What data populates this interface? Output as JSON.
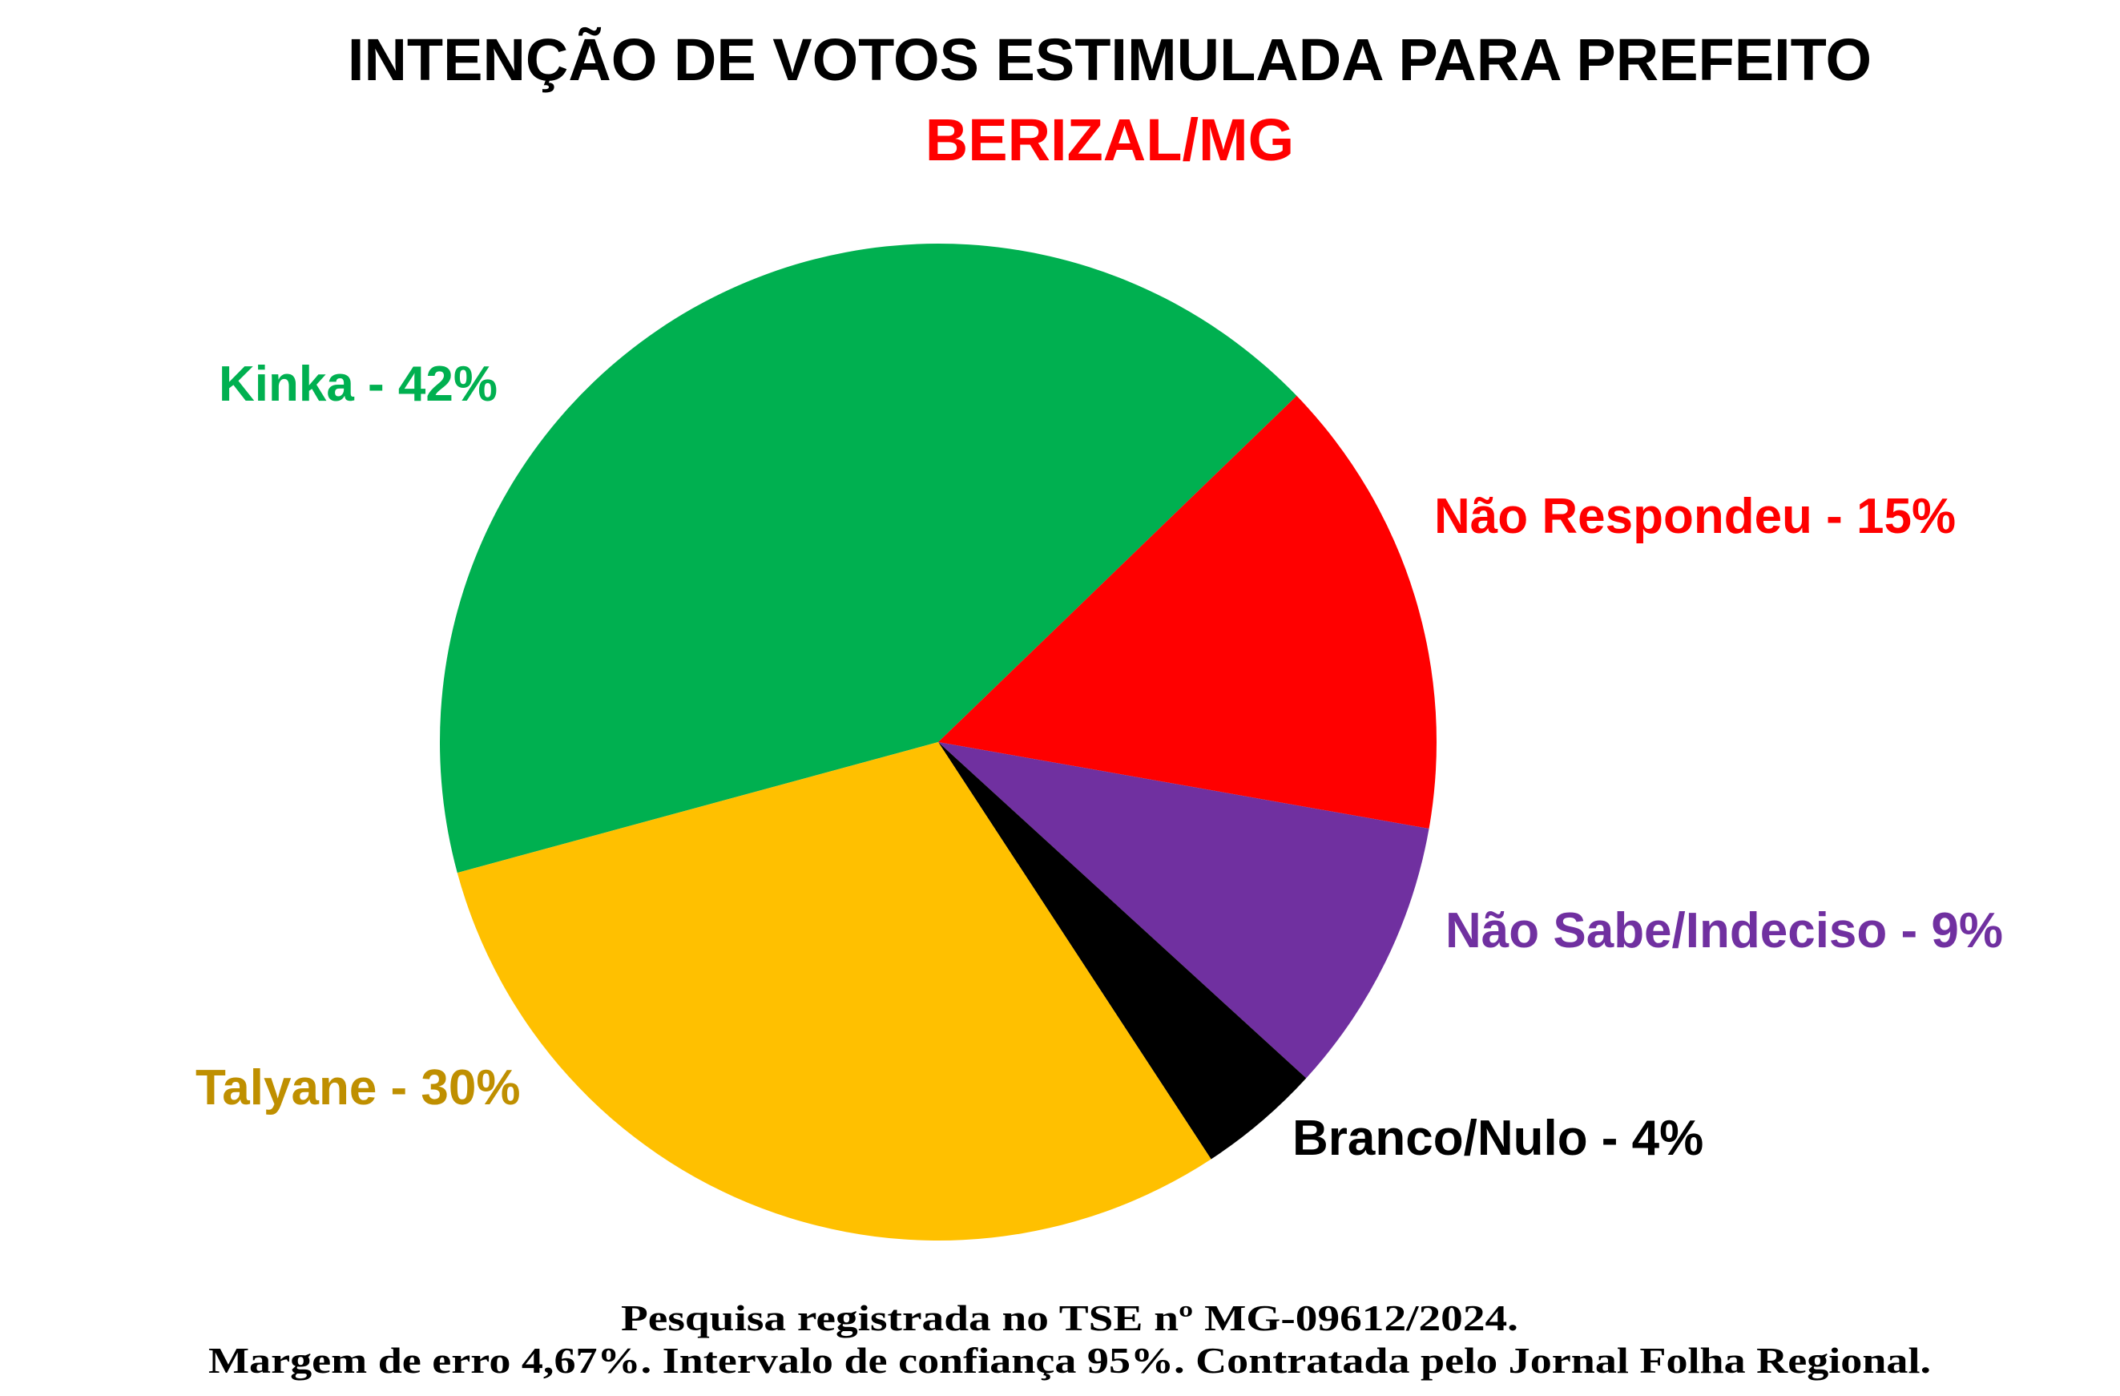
{
  "chart_data": {
    "type": "pie",
    "title": "INTENÇÃO DE VOTOS ESTIMULADA PARA PREFEITO",
    "subtitle": "BERIZAL/MG",
    "categories": [
      "Kinka - 42%",
      "Não Respondeu - 15%",
      "Não Sabe/Indeciso - 9%",
      "Branco/Nulo - 4%",
      "Talyane - 30%"
    ],
    "values": [
      42,
      15,
      9,
      4,
      30
    ],
    "colors": [
      "#00b050",
      "#ff0000",
      "#7030a0",
      "#000000",
      "#ffc000"
    ],
    "label_colors": [
      "#00b050",
      "#ff0000",
      "#7030a0",
      "#000000",
      "#bf8f00"
    ],
    "notes": [
      "Pesquisa registrada no TSE nº MG-09612/2024.",
      "Margem de erro 4,67%. Intervalo de confiança 95%. Contratada pelo Jornal Folha Regional."
    ]
  }
}
